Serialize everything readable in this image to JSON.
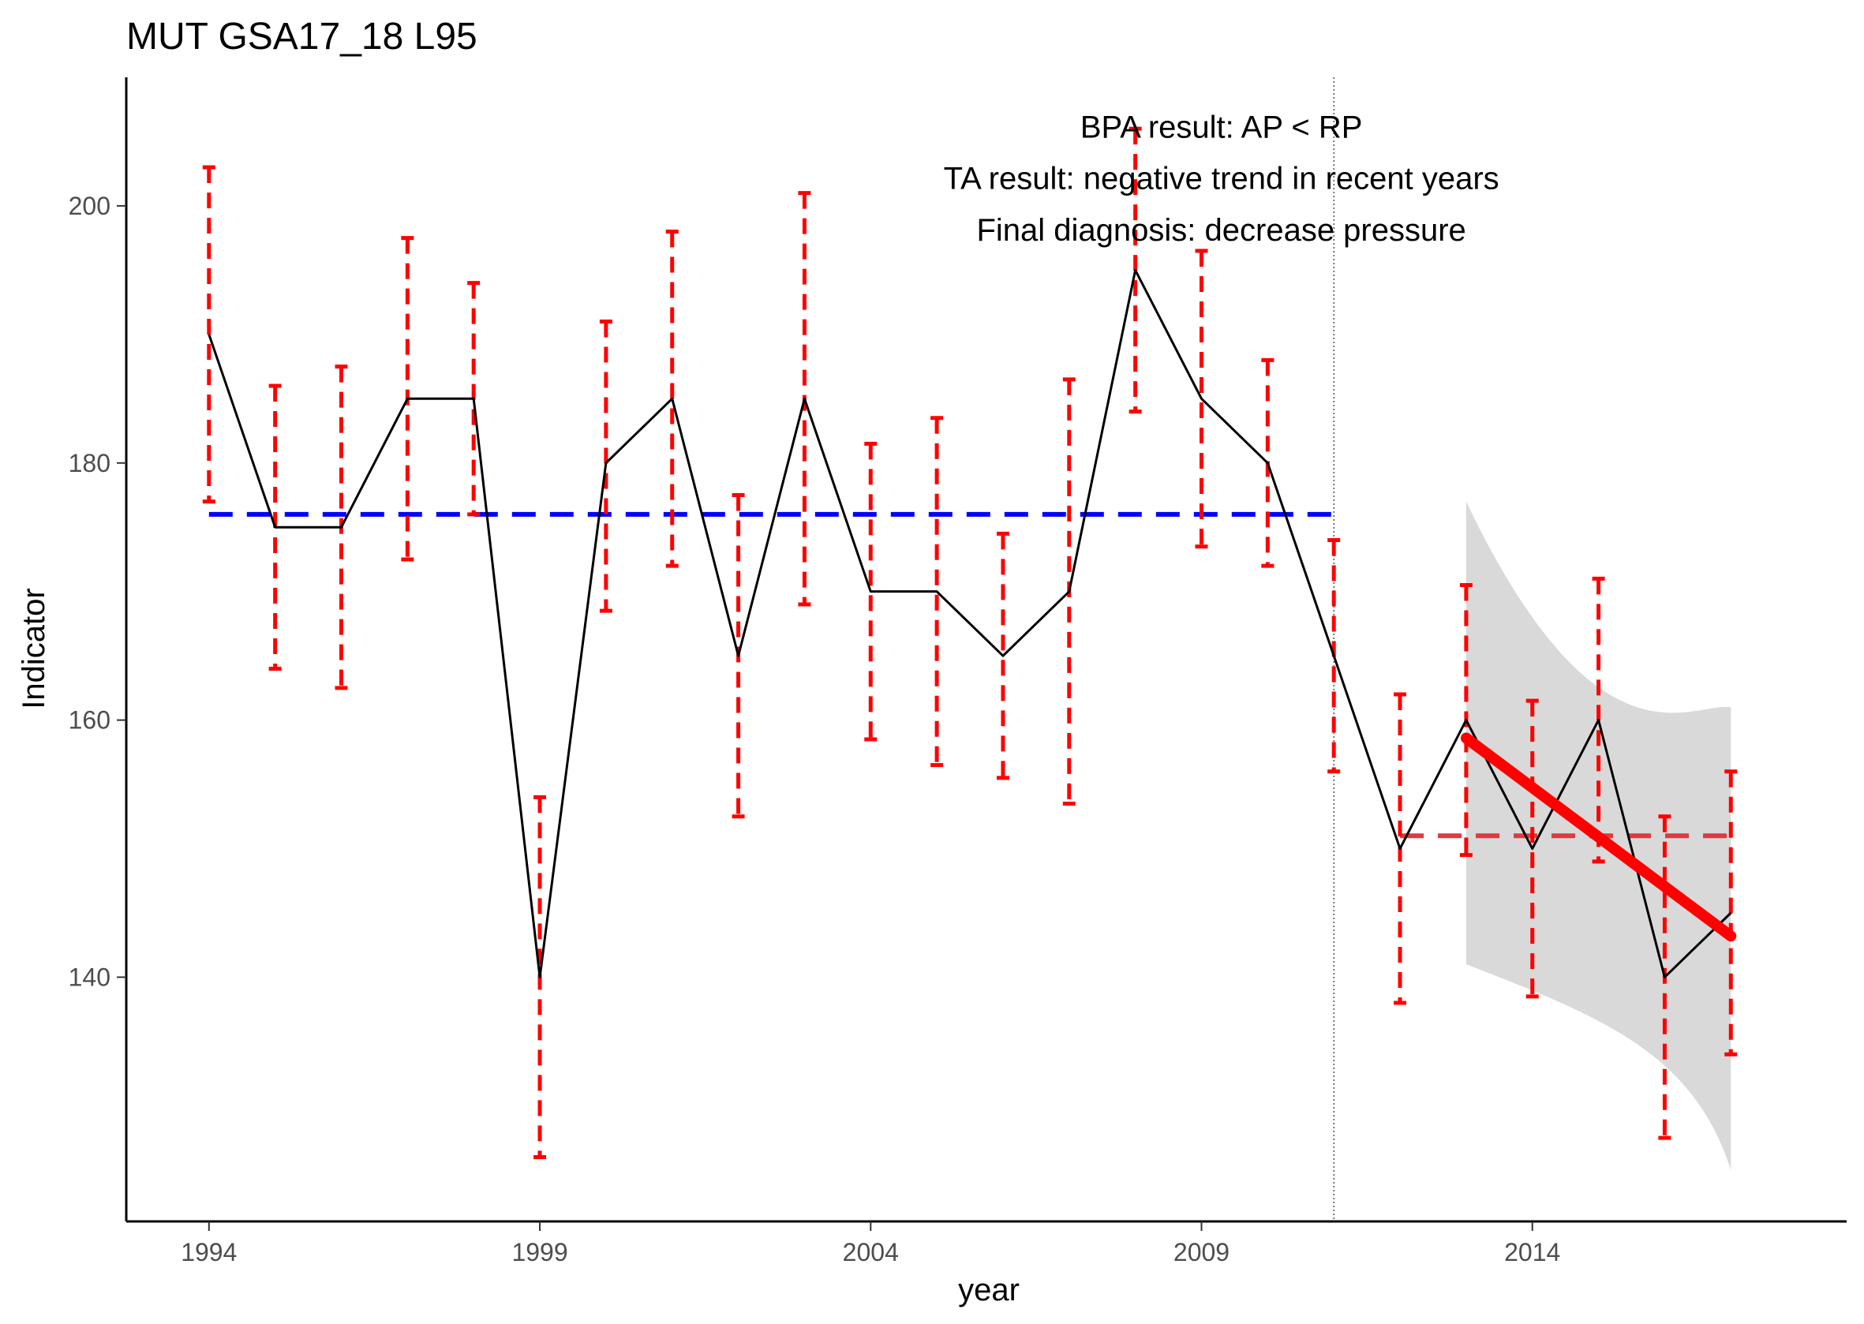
{
  "chart_data": {
    "type": "line",
    "title": "MUT GSA17_18 L95",
    "xlabel": "year",
    "ylabel": "Indicator",
    "xlim": [
      1992.75,
      2018.75
    ],
    "ylim": [
      121,
      210
    ],
    "x_ticks": [
      1994,
      1999,
      2004,
      2009,
      2014
    ],
    "x_tick_labels": [
      "1994",
      "1999",
      "2004",
      "2009",
      "2014"
    ],
    "y_ticks": [
      140,
      160,
      180,
      200
    ],
    "y_tick_labels": [
      "140",
      "160",
      "180",
      "200"
    ],
    "grid": false,
    "annotations": [
      "BPA result: AP < RP",
      "TA result: negative trend in recent years",
      "Final diagnosis: decrease pressure"
    ],
    "series": [
      {
        "x": [
          1994,
          1995,
          1996,
          1997,
          1998,
          1999,
          2000,
          2001,
          2002,
          2003,
          2004,
          2005,
          2006,
          2007,
          2008,
          2009,
          2010,
          2011,
          2012,
          2013,
          2014,
          2015,
          2016,
          2017
        ],
        "values": [
          190,
          175,
          175,
          185,
          185,
          140,
          180,
          185,
          165,
          185,
          170,
          170,
          165,
          170,
          195,
          185,
          180,
          165,
          150,
          160,
          150,
          160,
          140,
          145
        ],
        "color": "#000000"
      }
    ],
    "error_bars": {
      "x": [
        1994,
        1995,
        1996,
        1997,
        1998,
        1999,
        2000,
        2001,
        2002,
        2003,
        2004,
        2005,
        2006,
        2007,
        2008,
        2009,
        2010,
        2011,
        2012,
        2013,
        2014,
        2015,
        2016,
        2017
      ],
      "lower": [
        177,
        164,
        162.5,
        172.5,
        176,
        126,
        168.5,
        172,
        152.5,
        169,
        158.5,
        156.5,
        155.5,
        153.5,
        184,
        173.5,
        172,
        156,
        138,
        149.5,
        138.5,
        149,
        127.5,
        134
      ],
      "upper": [
        203,
        186,
        187.5,
        197.5,
        194,
        154,
        191,
        198,
        177.5,
        201,
        181.5,
        183.5,
        174.5,
        186.5,
        206,
        196.5,
        188,
        174,
        162,
        170.5,
        161.5,
        171,
        152.5,
        156
      ],
      "color": "#ff0000"
    },
    "reference_lines": [
      {
        "name": "RP",
        "y": 176,
        "x_range": [
          1994,
          2011
        ],
        "color": "#0000ff"
      },
      {
        "name": "AP",
        "y": 151,
        "x_range": [
          2012,
          2017
        ],
        "color": "#e0393e"
      }
    ],
    "vertical_line": {
      "x": 2011
    },
    "trend": {
      "x": [
        2013,
        2017
      ],
      "values": [
        158.6,
        143.2
      ],
      "ci_upper": [
        177,
        161
      ],
      "ci_lower": [
        141,
        125
      ],
      "color": "#ff0000",
      "band_color": "#d9d9d9"
    }
  }
}
